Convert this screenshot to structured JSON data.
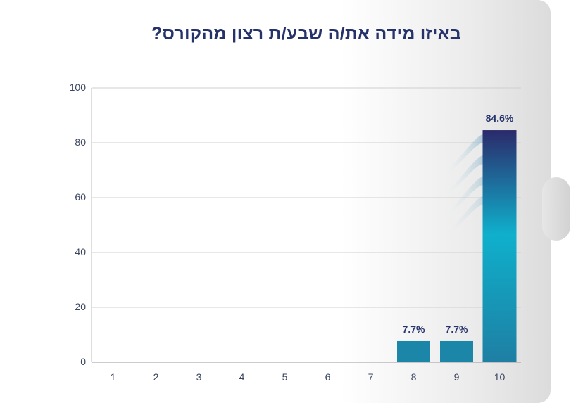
{
  "chart_data": {
    "type": "bar",
    "title": "באיזו מידה את/ה שבע/ת רצון מהקורס?",
    "categories": [
      "1",
      "2",
      "3",
      "4",
      "5",
      "6",
      "7",
      "8",
      "9",
      "10"
    ],
    "values": [
      0,
      0,
      0,
      0,
      0,
      0,
      0,
      7.7,
      7.7,
      84.6
    ],
    "data_labels": [
      "",
      "",
      "",
      "",
      "",
      "",
      "",
      "7.7%",
      "7.7%",
      "84.6%"
    ],
    "yticks": [
      "0",
      "20",
      "40",
      "60",
      "80",
      "100"
    ],
    "ylim": [
      0,
      100
    ],
    "grid": true,
    "colors": {
      "bar_top": "#2b2a6b",
      "bar_mid": "#0fb0cc",
      "bar_bottom": "#1e7fa3",
      "small_bar": "#1c86a8",
      "title": "#26336a"
    }
  }
}
